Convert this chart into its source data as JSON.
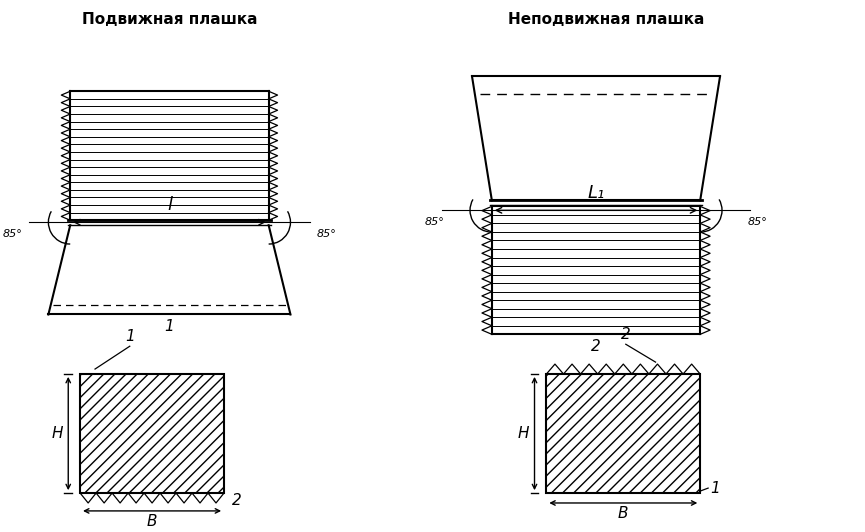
{
  "title_left": "Подвижная плашка",
  "title_right": "Неподвижная плашка",
  "bg_color": "#ffffff",
  "line_color": "#000000",
  "angle_label": "85°",
  "dim_label_left": "l",
  "dim_label_right": "L₁",
  "label_1": "1",
  "label_2": "2",
  "H_label": "H",
  "B_label": "B"
}
